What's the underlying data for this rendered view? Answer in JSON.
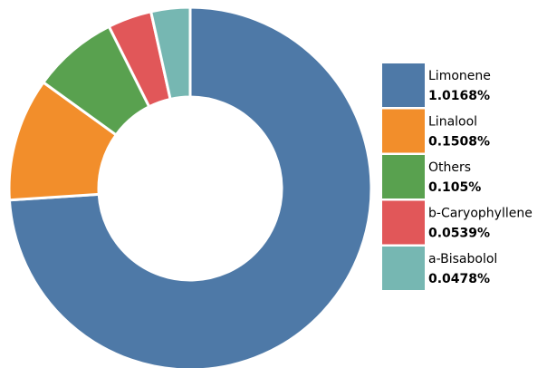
{
  "chart_data": {
    "type": "pie",
    "variant": "donut",
    "title": "",
    "legend_position": "right",
    "slices": [
      {
        "label": "Limonene",
        "value": 1.0168,
        "value_label": "1.0168%",
        "color": "#4e79a7"
      },
      {
        "label": "Linalool",
        "value": 0.1508,
        "value_label": "0.1508%",
        "color": "#f28e2b"
      },
      {
        "label": "Others",
        "value": 0.105,
        "value_label": "0.105%",
        "color": "#59a14f"
      },
      {
        "label": "b-Caryophyllene",
        "value": 0.0539,
        "value_label": "0.0539%",
        "color": "#e15759"
      },
      {
        "label": "a-Bisabolol",
        "value": 0.0478,
        "value_label": "0.0478%",
        "color": "#76b7b2"
      }
    ]
  }
}
